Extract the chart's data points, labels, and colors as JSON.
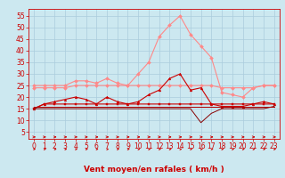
{
  "x": [
    0,
    1,
    2,
    3,
    4,
    5,
    6,
    7,
    8,
    9,
    10,
    11,
    12,
    13,
    14,
    15,
    16,
    17,
    18,
    19,
    20,
    21,
    22,
    23
  ],
  "series": [
    {
      "name": "rafales_light",
      "color": "#ff8888",
      "linewidth": 0.8,
      "marker": "D",
      "markersize": 2.0,
      "values": [
        25,
        25,
        25,
        25,
        27,
        27,
        26,
        28,
        26,
        25,
        30,
        35,
        46,
        51,
        55,
        47,
        42,
        37,
        22,
        21,
        20,
        24,
        25,
        25
      ]
    },
    {
      "name": "vent_moyen_light",
      "color": "#ff8888",
      "linewidth": 0.8,
      "marker": "D",
      "markersize": 2.0,
      "values": [
        24,
        24,
        24,
        24,
        25,
        25,
        25,
        25,
        25,
        25,
        25,
        25,
        25,
        25,
        25,
        25,
        25,
        25,
        24,
        24,
        24,
        24,
        25,
        25
      ]
    },
    {
      "name": "line_dark_markers",
      "color": "#cc0000",
      "linewidth": 0.8,
      "marker": "^",
      "markersize": 2.0,
      "values": [
        15,
        17,
        18,
        19,
        20,
        19,
        17,
        20,
        18,
        17,
        18,
        21,
        23,
        28,
        30,
        23,
        24,
        17,
        16,
        16,
        16,
        17,
        18,
        17
      ]
    },
    {
      "name": "line_dark_sq",
      "color": "#cc0000",
      "linewidth": 0.8,
      "marker": "s",
      "markersize": 2.0,
      "values": [
        15,
        17,
        17,
        17,
        17,
        17,
        17,
        17,
        17,
        17,
        17,
        17,
        17,
        17,
        17,
        17,
        17,
        17,
        17,
        17,
        17,
        17,
        17,
        17
      ]
    },
    {
      "name": "line_flat1",
      "color": "#cc0000",
      "linewidth": 0.7,
      "marker": null,
      "markersize": 0,
      "values": [
        16,
        16,
        16,
        16,
        16,
        16,
        16,
        16,
        16,
        16,
        16,
        16,
        16,
        16,
        16,
        16,
        16,
        16,
        16,
        16,
        16,
        16,
        16,
        16
      ]
    },
    {
      "name": "line_flat2",
      "color": "#880000",
      "linewidth": 0.7,
      "marker": null,
      "markersize": 0,
      "values": [
        15,
        15,
        15,
        15,
        15,
        15,
        15,
        15,
        15,
        15,
        15,
        15,
        15,
        15,
        15,
        15,
        9,
        13,
        15,
        15,
        15,
        15,
        15,
        16
      ]
    },
    {
      "name": "line_flat3",
      "color": "#aa0000",
      "linewidth": 0.7,
      "marker": null,
      "markersize": 0,
      "values": [
        16,
        16,
        16,
        16,
        16,
        16,
        16,
        16,
        16,
        16,
        16,
        16,
        16,
        16,
        16,
        16,
        16,
        16,
        16,
        16,
        16,
        16,
        16,
        16
      ]
    }
  ],
  "xlabel": "Vent moyen/en rafales ( km/h )",
  "xlim": [
    -0.5,
    23.5
  ],
  "ylim": [
    2,
    58
  ],
  "yticks": [
    5,
    10,
    15,
    20,
    25,
    30,
    35,
    40,
    45,
    50,
    55
  ],
  "xticks": [
    0,
    1,
    2,
    3,
    4,
    5,
    6,
    7,
    8,
    9,
    10,
    11,
    12,
    13,
    14,
    15,
    16,
    17,
    18,
    19,
    20,
    21,
    22,
    23
  ],
  "background_color": "#cce8f0",
  "grid_color": "#aaccdd",
  "axis_color": "#cc0000",
  "label_color": "#cc0000",
  "tick_fontsize": 5.5,
  "xlabel_fontsize": 6.5
}
